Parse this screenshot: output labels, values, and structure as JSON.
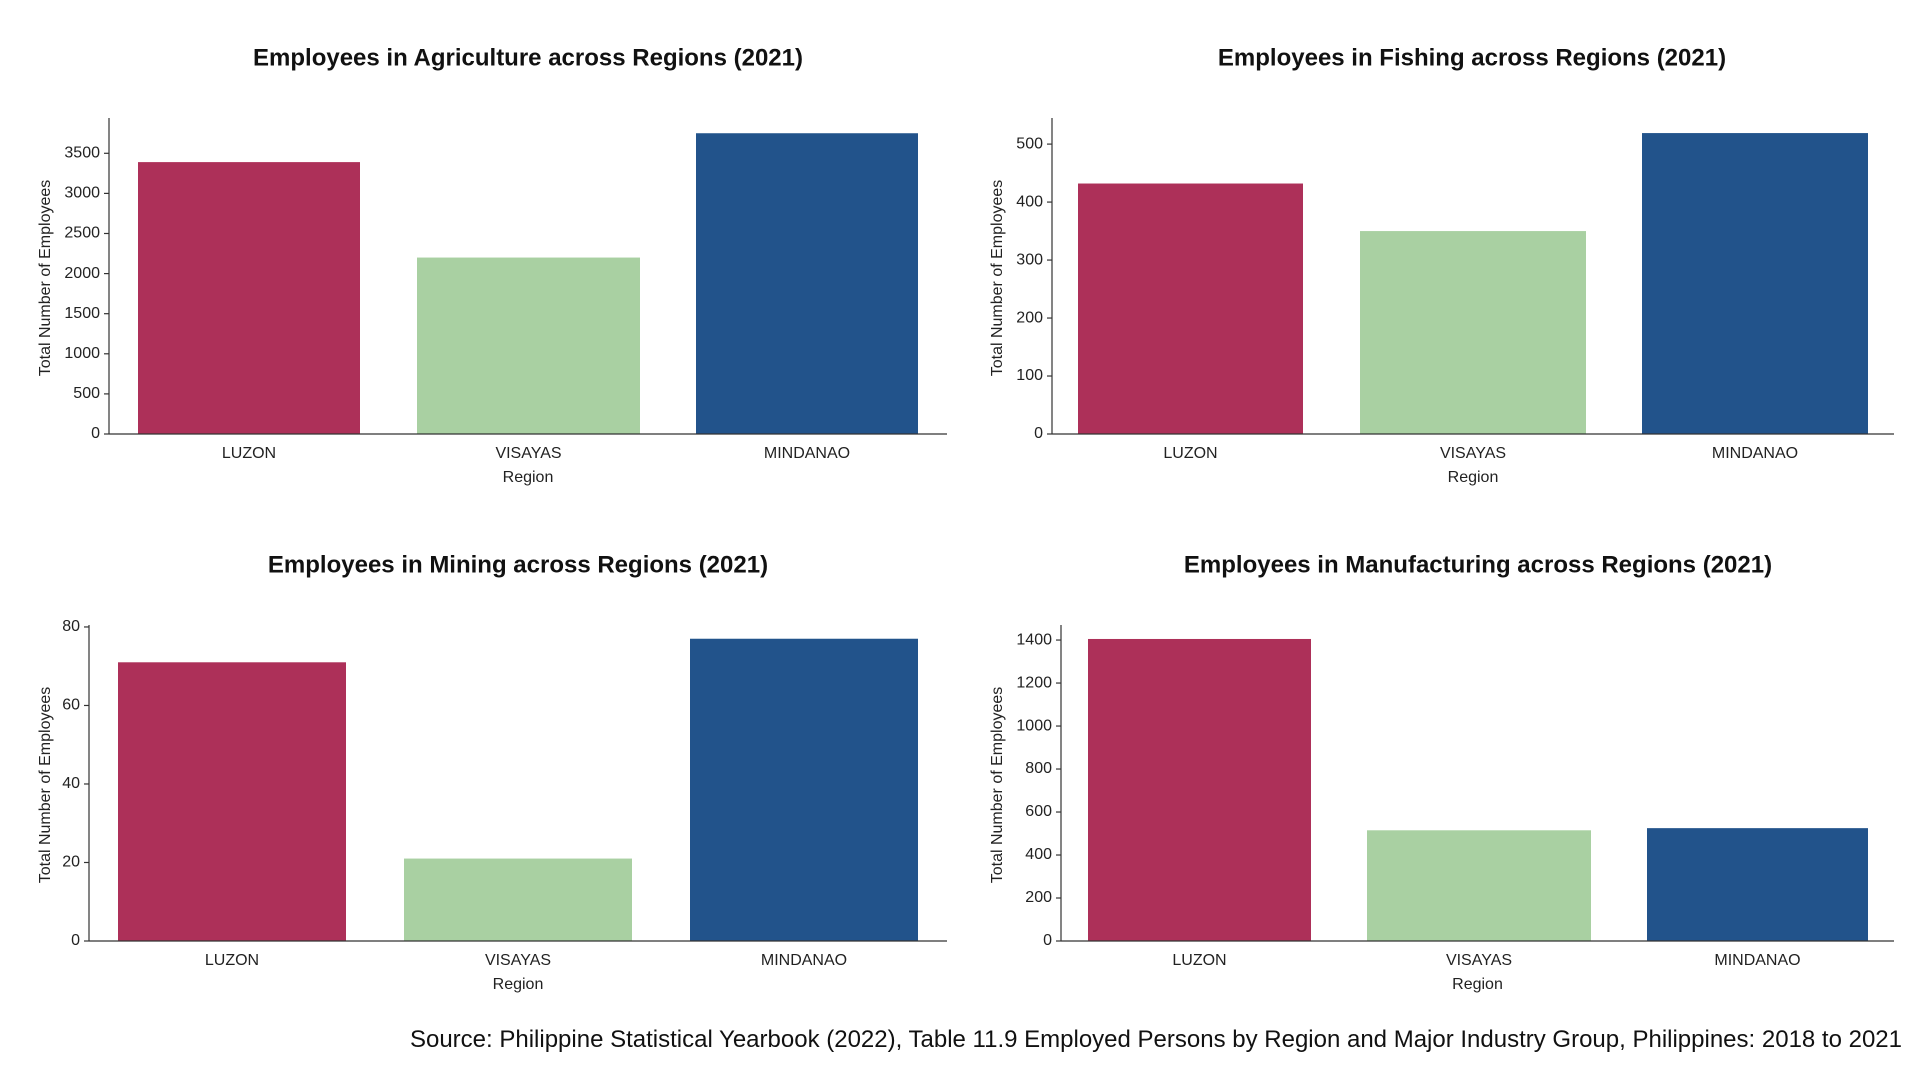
{
  "chart_data": [
    {
      "type": "bar",
      "title": "Employees in Agriculture across Regions (2021)",
      "xlabel": "Region",
      "ylabel": "Total Number of Employees",
      "categories": [
        "LUZON",
        "VISAYAS",
        "MINDANAO"
      ],
      "values": [
        3390,
        2200,
        3750
      ],
      "ylim": [
        0,
        3940
      ],
      "yticks": [
        0,
        500,
        1000,
        1500,
        2000,
        2500,
        3000,
        3500
      ],
      "colors": [
        "#ad3059",
        "#a9d0a2",
        "#22538b"
      ],
      "grid": false
    },
    {
      "type": "bar",
      "title": "Employees in Fishing across Regions (2021)",
      "xlabel": "Region",
      "ylabel": "Total Number of Employees",
      "categories": [
        "LUZON",
        "VISAYAS",
        "MINDANAO"
      ],
      "values": [
        432,
        350,
        519
      ],
      "ylim": [
        0,
        545
      ],
      "yticks": [
        0,
        100,
        200,
        300,
        400,
        500
      ],
      "colors": [
        "#ad3059",
        "#a9d0a2",
        "#22538b"
      ],
      "grid": false
    },
    {
      "type": "bar",
      "title": "Employees in Mining across Regions (2021)",
      "xlabel": "Region",
      "ylabel": "Total Number of Employees",
      "categories": [
        "LUZON",
        "VISAYAS",
        "MINDANAO"
      ],
      "values": [
        71,
        21,
        77
      ],
      "ylim": [
        0,
        80.5
      ],
      "yticks": [
        0,
        20,
        40,
        60,
        80
      ],
      "colors": [
        "#ad3059",
        "#a9d0a2",
        "#22538b"
      ],
      "grid": false
    },
    {
      "type": "bar",
      "title": "Employees in Manufacturing across Regions (2021)",
      "xlabel": "Region",
      "ylabel": "Total Number of Employees",
      "categories": [
        "LUZON",
        "VISAYAS",
        "MINDANAO"
      ],
      "values": [
        1405,
        515,
        525
      ],
      "ylim": [
        0,
        1470
      ],
      "yticks": [
        0,
        200,
        400,
        600,
        800,
        1000,
        1200,
        1400
      ],
      "colors": [
        "#ad3059",
        "#a9d0a2",
        "#22538b"
      ],
      "grid": false
    }
  ],
  "source_note": "Source: Philippine Statistical Yearbook (2022), Table 11.9 Employed Persons by Region and Major Industry Group, Philippines: 2018 to 2021"
}
